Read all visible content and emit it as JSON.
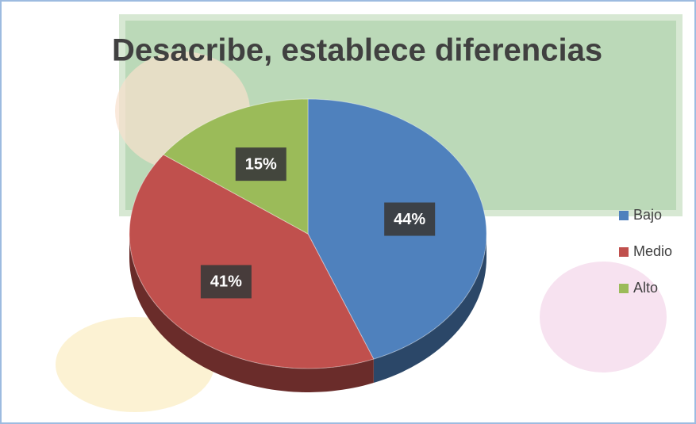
{
  "chart_data": {
    "type": "pie",
    "title": "Desacribe, establece diferencias",
    "categories": [
      "Bajo",
      "Medio",
      "Alto"
    ],
    "values": [
      44,
      41,
      15
    ],
    "value_labels": [
      "44%",
      "41%",
      "15%"
    ],
    "colors": [
      "#4f81bd",
      "#c0504d",
      "#9bbb59"
    ],
    "legend": "right"
  }
}
